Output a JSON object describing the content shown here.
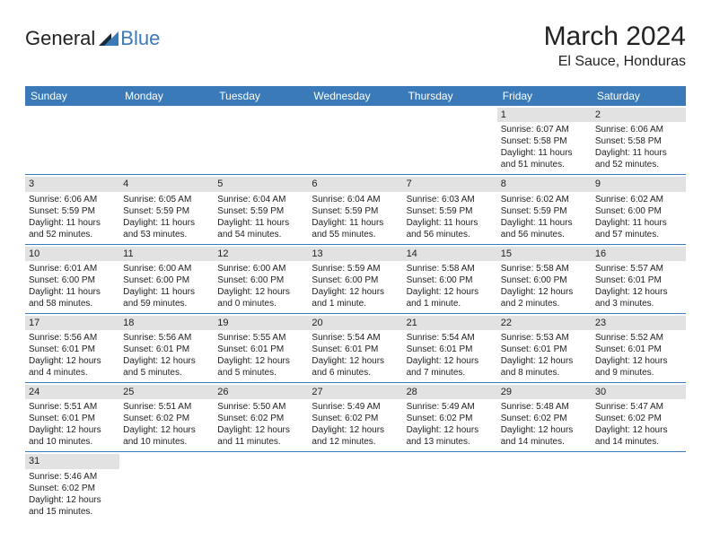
{
  "logo": {
    "text1": "General",
    "text2": "Blue"
  },
  "title": "March 2024",
  "location": "El Sauce, Honduras",
  "colors": {
    "header_bg": "#3a7ab8",
    "header_text": "#ffffff",
    "daynum_bg": "#e2e2e2",
    "border": "#3a7ab8",
    "text": "#222222",
    "logo_blue": "#3a7ab8",
    "logo_dark": "#1a2a3a"
  },
  "dayHeaders": [
    "Sunday",
    "Monday",
    "Tuesday",
    "Wednesday",
    "Thursday",
    "Friday",
    "Saturday"
  ],
  "weeks": [
    [
      null,
      null,
      null,
      null,
      null,
      {
        "n": "1",
        "sr": "6:07 AM",
        "ss": "5:58 PM",
        "dl": "11 hours and 51 minutes."
      },
      {
        "n": "2",
        "sr": "6:06 AM",
        "ss": "5:58 PM",
        "dl": "11 hours and 52 minutes."
      }
    ],
    [
      {
        "n": "3",
        "sr": "6:06 AM",
        "ss": "5:59 PM",
        "dl": "11 hours and 52 minutes."
      },
      {
        "n": "4",
        "sr": "6:05 AM",
        "ss": "5:59 PM",
        "dl": "11 hours and 53 minutes."
      },
      {
        "n": "5",
        "sr": "6:04 AM",
        "ss": "5:59 PM",
        "dl": "11 hours and 54 minutes."
      },
      {
        "n": "6",
        "sr": "6:04 AM",
        "ss": "5:59 PM",
        "dl": "11 hours and 55 minutes."
      },
      {
        "n": "7",
        "sr": "6:03 AM",
        "ss": "5:59 PM",
        "dl": "11 hours and 56 minutes."
      },
      {
        "n": "8",
        "sr": "6:02 AM",
        "ss": "5:59 PM",
        "dl": "11 hours and 56 minutes."
      },
      {
        "n": "9",
        "sr": "6:02 AM",
        "ss": "6:00 PM",
        "dl": "11 hours and 57 minutes."
      }
    ],
    [
      {
        "n": "10",
        "sr": "6:01 AM",
        "ss": "6:00 PM",
        "dl": "11 hours and 58 minutes."
      },
      {
        "n": "11",
        "sr": "6:00 AM",
        "ss": "6:00 PM",
        "dl": "11 hours and 59 minutes."
      },
      {
        "n": "12",
        "sr": "6:00 AM",
        "ss": "6:00 PM",
        "dl": "12 hours and 0 minutes."
      },
      {
        "n": "13",
        "sr": "5:59 AM",
        "ss": "6:00 PM",
        "dl": "12 hours and 1 minute."
      },
      {
        "n": "14",
        "sr": "5:58 AM",
        "ss": "6:00 PM",
        "dl": "12 hours and 1 minute."
      },
      {
        "n": "15",
        "sr": "5:58 AM",
        "ss": "6:00 PM",
        "dl": "12 hours and 2 minutes."
      },
      {
        "n": "16",
        "sr": "5:57 AM",
        "ss": "6:01 PM",
        "dl": "12 hours and 3 minutes."
      }
    ],
    [
      {
        "n": "17",
        "sr": "5:56 AM",
        "ss": "6:01 PM",
        "dl": "12 hours and 4 minutes."
      },
      {
        "n": "18",
        "sr": "5:56 AM",
        "ss": "6:01 PM",
        "dl": "12 hours and 5 minutes."
      },
      {
        "n": "19",
        "sr": "5:55 AM",
        "ss": "6:01 PM",
        "dl": "12 hours and 5 minutes."
      },
      {
        "n": "20",
        "sr": "5:54 AM",
        "ss": "6:01 PM",
        "dl": "12 hours and 6 minutes."
      },
      {
        "n": "21",
        "sr": "5:54 AM",
        "ss": "6:01 PM",
        "dl": "12 hours and 7 minutes."
      },
      {
        "n": "22",
        "sr": "5:53 AM",
        "ss": "6:01 PM",
        "dl": "12 hours and 8 minutes."
      },
      {
        "n": "23",
        "sr": "5:52 AM",
        "ss": "6:01 PM",
        "dl": "12 hours and 9 minutes."
      }
    ],
    [
      {
        "n": "24",
        "sr": "5:51 AM",
        "ss": "6:01 PM",
        "dl": "12 hours and 10 minutes."
      },
      {
        "n": "25",
        "sr": "5:51 AM",
        "ss": "6:02 PM",
        "dl": "12 hours and 10 minutes."
      },
      {
        "n": "26",
        "sr": "5:50 AM",
        "ss": "6:02 PM",
        "dl": "12 hours and 11 minutes."
      },
      {
        "n": "27",
        "sr": "5:49 AM",
        "ss": "6:02 PM",
        "dl": "12 hours and 12 minutes."
      },
      {
        "n": "28",
        "sr": "5:49 AM",
        "ss": "6:02 PM",
        "dl": "12 hours and 13 minutes."
      },
      {
        "n": "29",
        "sr": "5:48 AM",
        "ss": "6:02 PM",
        "dl": "12 hours and 14 minutes."
      },
      {
        "n": "30",
        "sr": "5:47 AM",
        "ss": "6:02 PM",
        "dl": "12 hours and 14 minutes."
      }
    ],
    [
      {
        "n": "31",
        "sr": "5:46 AM",
        "ss": "6:02 PM",
        "dl": "12 hours and 15 minutes."
      },
      null,
      null,
      null,
      null,
      null,
      null
    ]
  ],
  "labels": {
    "sunrise": "Sunrise:",
    "sunset": "Sunset:",
    "daylight": "Daylight:"
  }
}
